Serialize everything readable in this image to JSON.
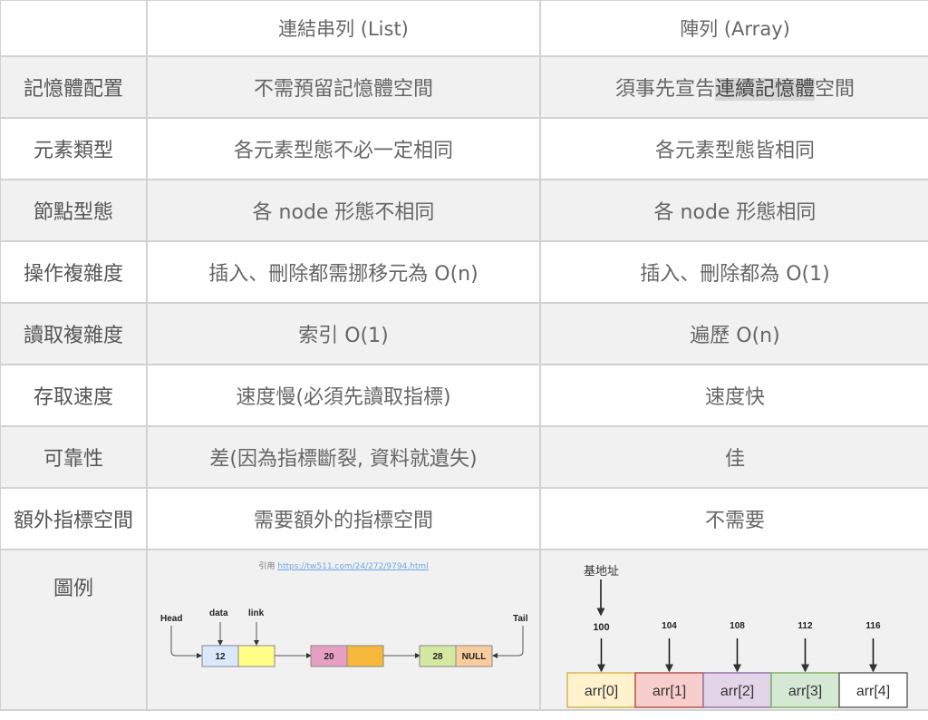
{
  "header": {
    "col1": "連結串列 (List)",
    "col2": "陣列 (Array)"
  },
  "rows": [
    {
      "label": "記憶體配置",
      "list": "不需預留記憶體空間",
      "array_pre": "須事先宣告",
      "array_hl": "連續記憶體",
      "array_post": "空間"
    },
    {
      "label": "元素類型",
      "list": "各元素型態不必一定相同",
      "array": "各元素型態皆相同"
    },
    {
      "label": "節點型態",
      "list": "各 node 形態不相同",
      "array": "各 node 形態相同"
    },
    {
      "label": "操作複雜度",
      "list": "插入、刪除都需挪移元為 O(n)",
      "array": "插入、刪除都為 O(1)"
    },
    {
      "label": "讀取複雜度",
      "list": "索引 O(1)",
      "array": "遍歷 O(n)"
    },
    {
      "label": "存取速度",
      "list": "速度慢(必須先讀取指標)",
      "array": "速度快"
    },
    {
      "label": "可靠性",
      "list": "差(因為指標斷裂, 資料就遺失)",
      "array": "佳"
    },
    {
      "label": "額外指標空間",
      "list": "需要額外的指標空間",
      "array": "不需要"
    }
  ],
  "figure": {
    "label": "圖例",
    "cite_prefix": "引用",
    "cite_link": "https://tw511.com/24/272/9794.html",
    "list_diagram": {
      "head": "Head",
      "tail": "Tail",
      "data": "data",
      "link": "link",
      "nodes": [
        "12",
        "20",
        "28"
      ],
      "null": "NULL",
      "colors": [
        "#dae8fc",
        "#ffff88",
        "#e6a0c4",
        "#f5b83a",
        "#d5e8a0",
        "#f8cc9c"
      ]
    },
    "array_diagram": {
      "base": "基地址",
      "addresses": [
        "100",
        "104",
        "108",
        "112",
        "116"
      ],
      "cells": [
        "arr[0]",
        "arr[1]",
        "arr[2]",
        "arr[3]",
        "arr[4]"
      ],
      "colors": [
        "#fff2cc",
        "#f8cecc",
        "#e1d5e7",
        "#d5e8d4",
        "#ffffff"
      ],
      "borders": [
        "#d6b656",
        "#b85450",
        "#9673a6",
        "#82b366",
        "#666666"
      ]
    }
  }
}
